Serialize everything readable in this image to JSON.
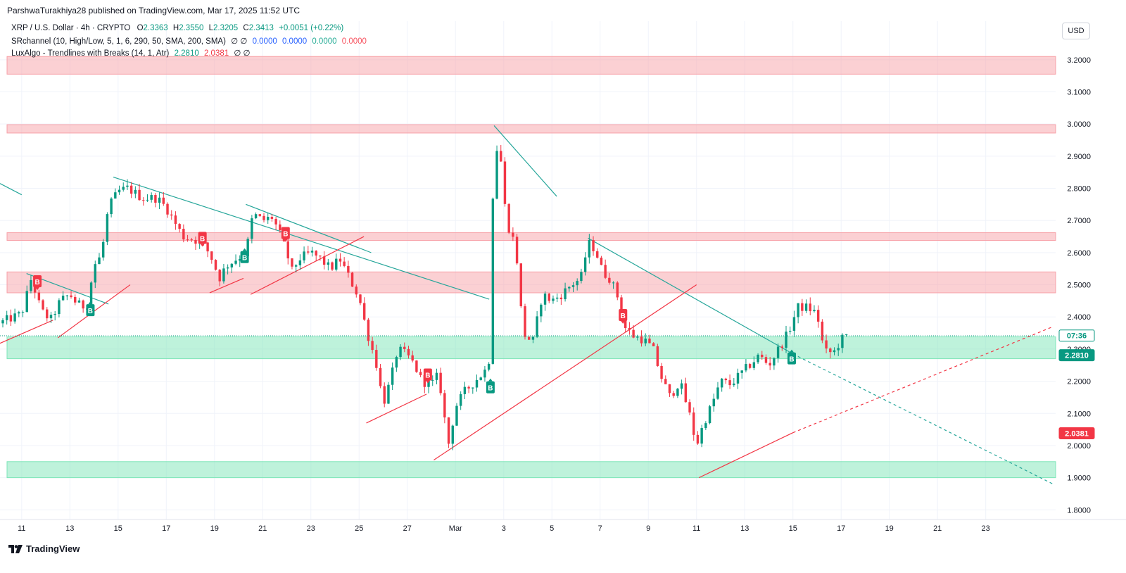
{
  "header": {
    "published_line": "ParshwaTurakhiya28 published on TradingView.com, Mar 17, 2025 11:52 UTC"
  },
  "legend": {
    "symbol": "XRP / U.S. Dollar · 4h · CRYPTO",
    "open_label": "O",
    "open": "2.3363",
    "high_label": "H",
    "high": "2.3550",
    "low_label": "L",
    "low": "2.3205",
    "close_label": "C",
    "close": "2.3413",
    "change": "+0.0051 (+0.22%)",
    "indicator1_name": "SRchannel (10, High/Low, 5, 1, 6, 290, 50, SMA, 200, SMA)",
    "indicator1_nulls": "∅ ∅",
    "indicator1_values": [
      "0.0000",
      "0.0000",
      "0.0000",
      "0.0000"
    ],
    "indicator2_name": "LuxAlgo - Trendlines with Breaks (14, 1, Atr)",
    "indicator2_values": [
      "2.2810",
      "2.0381"
    ],
    "indicator2_nulls": "∅ ∅"
  },
  "currency_button": "USD",
  "footer": {
    "brand": "TradingView"
  },
  "colors": {
    "up": "#089981",
    "down": "#f23645",
    "resistance_zone": "#f7a1a8",
    "support_zone": "#7ee6b8",
    "trend_teal": "#26a69a",
    "trend_red": "#f23645",
    "axis_text": "#131722",
    "grid": "#f0f3fa"
  },
  "chart_data": {
    "type": "candlestick",
    "symbol": "XRP / U.S. Dollar",
    "timeframe": "4h",
    "y_axis": {
      "ticks": [
        "3.2000",
        "3.1000",
        "3.0000",
        "2.9000",
        "2.8000",
        "2.7000",
        "2.6000",
        "2.5000",
        "2.4000",
        "2.3000",
        "2.2000",
        "2.1000",
        "2.0000",
        "1.9000",
        "1.8000"
      ],
      "range": [
        1.77,
        3.32
      ]
    },
    "x_axis": {
      "labels": [
        {
          "label": "11",
          "day": 0
        },
        {
          "label": "13",
          "day": 2
        },
        {
          "label": "15",
          "day": 4
        },
        {
          "label": "17",
          "day": 6
        },
        {
          "label": "19",
          "day": 8
        },
        {
          "label": "21",
          "day": 10
        },
        {
          "label": "23",
          "day": 12
        },
        {
          "label": "25",
          "day": 14
        },
        {
          "label": "27",
          "day": 16
        },
        {
          "label": "Mar",
          "day": 18
        },
        {
          "label": "3",
          "day": 20
        },
        {
          "label": "5",
          "day": 22
        },
        {
          "label": "7",
          "day": 24
        },
        {
          "label": "9",
          "day": 26
        },
        {
          "label": "11",
          "day": 28
        },
        {
          "label": "13",
          "day": 30
        },
        {
          "label": "15",
          "day": 32
        },
        {
          "label": "17",
          "day": 34
        },
        {
          "label": "19",
          "day": 36
        },
        {
          "label": "21",
          "day": 38
        },
        {
          "label": "23",
          "day": 40
        }
      ],
      "day_range": [
        -0.9,
        42.9
      ]
    },
    "zones": [
      {
        "kind": "resistance",
        "low": 3.155,
        "high": 3.21
      },
      {
        "kind": "resistance",
        "low": 2.972,
        "high": 2.998
      },
      {
        "kind": "resistance",
        "low": 2.638,
        "high": 2.662
      },
      {
        "kind": "resistance",
        "low": 2.475,
        "high": 2.54
      },
      {
        "kind": "support",
        "low": 2.27,
        "high": 2.338
      },
      {
        "kind": "support",
        "low": 1.9,
        "high": 1.95
      }
    ],
    "trendlines": [
      {
        "color": "teal",
        "points": [
          [
            -0.9,
            2.815
          ],
          [
            0.0,
            2.78
          ]
        ]
      },
      {
        "color": "teal",
        "points": [
          [
            0.2,
            2.535
          ],
          [
            3.6,
            2.44
          ]
        ]
      },
      {
        "color": "teal",
        "points": [
          [
            3.8,
            2.835
          ],
          [
            19.4,
            2.455
          ]
        ]
      },
      {
        "color": "teal",
        "points": [
          [
            9.3,
            2.75
          ],
          [
            14.5,
            2.6
          ]
        ]
      },
      {
        "color": "teal",
        "points": [
          [
            19.6,
            2.995
          ],
          [
            22.2,
            2.775
          ]
        ]
      },
      {
        "color": "teal",
        "points": [
          [
            23.5,
            2.645
          ],
          [
            32.0,
            2.285
          ]
        ]
      },
      {
        "color": "teal",
        "dashed": true,
        "points": [
          [
            32.0,
            2.285
          ],
          [
            42.8,
            1.88
          ]
        ]
      },
      {
        "color": "red",
        "points": [
          [
            -0.9,
            2.318
          ],
          [
            1.3,
            2.39
          ]
        ]
      },
      {
        "color": "red",
        "points": [
          [
            1.5,
            2.335
          ],
          [
            4.5,
            2.5
          ]
        ]
      },
      {
        "color": "red",
        "points": [
          [
            7.8,
            2.475
          ],
          [
            9.2,
            2.52
          ]
        ]
      },
      {
        "color": "red",
        "points": [
          [
            9.5,
            2.47
          ],
          [
            14.2,
            2.65
          ]
        ]
      },
      {
        "color": "red",
        "points": [
          [
            14.3,
            2.07
          ],
          [
            16.8,
            2.16
          ]
        ]
      },
      {
        "color": "red",
        "points": [
          [
            17.1,
            1.955
          ],
          [
            28.0,
            2.5
          ]
        ]
      },
      {
        "color": "red",
        "points": [
          [
            28.1,
            1.9
          ],
          [
            32.0,
            2.04
          ]
        ]
      },
      {
        "color": "red",
        "dashed": true,
        "points": [
          [
            32.0,
            2.04
          ],
          [
            42.8,
            2.37
          ]
        ]
      }
    ],
    "signals": [
      {
        "type": "B",
        "side": "sell",
        "day": 0.65,
        "price": 2.51
      },
      {
        "type": "B",
        "side": "buy",
        "day": 2.85,
        "price": 2.42
      },
      {
        "type": "B",
        "side": "sell",
        "day": 7.5,
        "price": 2.645
      },
      {
        "type": "B",
        "side": "buy",
        "day": 9.25,
        "price": 2.585
      },
      {
        "type": "B",
        "side": "sell",
        "day": 10.95,
        "price": 2.66
      },
      {
        "type": "B",
        "side": "sell",
        "day": 16.85,
        "price": 2.22
      },
      {
        "type": "B",
        "side": "buy",
        "day": 19.45,
        "price": 2.18
      },
      {
        "type": "B",
        "side": "sell",
        "day": 24.95,
        "price": 2.405
      },
      {
        "type": "B",
        "side": "buy",
        "day": 31.95,
        "price": 2.27
      }
    ],
    "price_labels": [
      {
        "text": "07:36",
        "price": 2.342,
        "color": "#089981",
        "style": "outline"
      },
      {
        "text": "2.2810",
        "price": 2.281,
        "color": "#089981",
        "style": "filled"
      },
      {
        "text": "2.0381",
        "price": 2.0381,
        "color": "#f23645",
        "style": "filled"
      }
    ],
    "current_price": 2.3413,
    "ohlc_path": [
      [
        -0.95,
        2.38
      ],
      [
        0.0,
        2.41
      ],
      [
        0.4,
        2.52
      ],
      [
        0.8,
        2.42
      ],
      [
        1.2,
        2.39
      ],
      [
        1.6,
        2.45
      ],
      [
        2.0,
        2.47
      ],
      [
        2.3,
        2.44
      ],
      [
        2.7,
        2.43
      ],
      [
        3.0,
        2.56
      ],
      [
        3.3,
        2.59
      ],
      [
        3.6,
        2.74
      ],
      [
        4.0,
        2.79
      ],
      [
        4.4,
        2.8
      ],
      [
        5.0,
        2.77
      ],
      [
        5.6,
        2.77
      ],
      [
        6.0,
        2.74
      ],
      [
        6.3,
        2.7
      ],
      [
        6.7,
        2.65
      ],
      [
        7.2,
        2.64
      ],
      [
        7.6,
        2.62
      ],
      [
        7.9,
        2.58
      ],
      [
        8.2,
        2.52
      ],
      [
        8.5,
        2.56
      ],
      [
        8.9,
        2.58
      ],
      [
        9.3,
        2.6
      ],
      [
        9.6,
        2.72
      ],
      [
        10.0,
        2.7
      ],
      [
        10.4,
        2.71
      ],
      [
        10.7,
        2.66
      ],
      [
        11.0,
        2.6
      ],
      [
        11.2,
        2.54
      ],
      [
        11.5,
        2.58
      ],
      [
        12.0,
        2.6
      ],
      [
        12.4,
        2.58
      ],
      [
        12.8,
        2.55
      ],
      [
        13.2,
        2.58
      ],
      [
        13.6,
        2.52
      ],
      [
        14.0,
        2.46
      ],
      [
        14.3,
        2.36
      ],
      [
        14.7,
        2.26
      ],
      [
        15.0,
        2.13
      ],
      [
        15.3,
        2.2
      ],
      [
        15.6,
        2.3
      ],
      [
        16.0,
        2.28
      ],
      [
        16.3,
        2.25
      ],
      [
        16.6,
        2.2
      ],
      [
        17.0,
        2.19
      ],
      [
        17.3,
        2.22
      ],
      [
        17.7,
        2.0
      ],
      [
        18.0,
        2.12
      ],
      [
        18.4,
        2.17
      ],
      [
        18.8,
        2.2
      ],
      [
        19.2,
        2.23
      ],
      [
        19.4,
        2.27
      ],
      [
        19.6,
        2.95
      ],
      [
        19.9,
        2.88
      ],
      [
        20.1,
        2.7
      ],
      [
        20.5,
        2.62
      ],
      [
        20.8,
        2.35
      ],
      [
        21.2,
        2.32
      ],
      [
        21.6,
        2.47
      ],
      [
        22.0,
        2.45
      ],
      [
        22.4,
        2.47
      ],
      [
        22.8,
        2.5
      ],
      [
        23.2,
        2.52
      ],
      [
        23.5,
        2.63
      ],
      [
        23.8,
        2.61
      ],
      [
        24.1,
        2.54
      ],
      [
        24.4,
        2.52
      ],
      [
        24.7,
        2.47
      ],
      [
        25.0,
        2.37
      ],
      [
        25.4,
        2.34
      ],
      [
        25.8,
        2.33
      ],
      [
        26.2,
        2.3
      ],
      [
        26.5,
        2.22
      ],
      [
        26.9,
        2.15
      ],
      [
        27.3,
        2.2
      ],
      [
        27.7,
        2.1
      ],
      [
        28.0,
        2.0
      ],
      [
        28.3,
        2.07
      ],
      [
        28.6,
        2.12
      ],
      [
        29.0,
        2.2
      ],
      [
        29.4,
        2.19
      ],
      [
        29.8,
        2.22
      ],
      [
        30.2,
        2.25
      ],
      [
        30.6,
        2.28
      ],
      [
        31.0,
        2.25
      ],
      [
        31.4,
        2.3
      ],
      [
        31.8,
        2.35
      ],
      [
        32.2,
        2.43
      ],
      [
        32.6,
        2.43
      ],
      [
        33.0,
        2.41
      ],
      [
        33.3,
        2.29
      ],
      [
        33.7,
        2.29
      ],
      [
        34.0,
        2.33
      ],
      [
        34.3,
        2.3413
      ]
    ]
  }
}
